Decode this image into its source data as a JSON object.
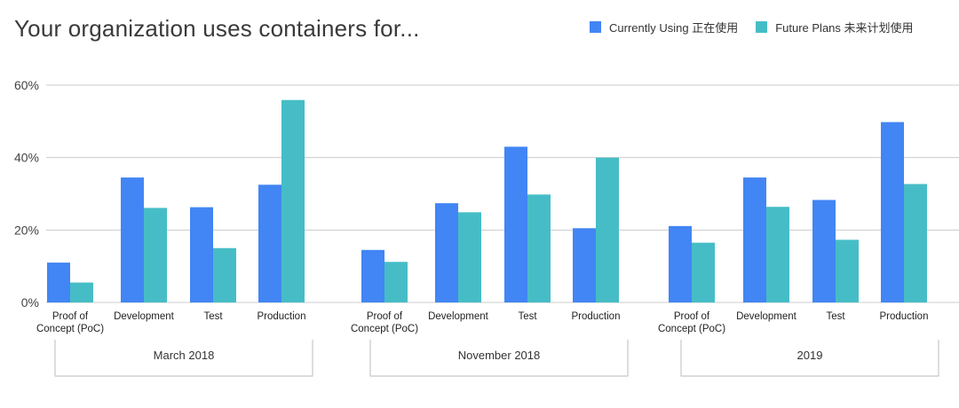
{
  "colors": {
    "currently_using": "#4285f4",
    "future_plans": "#46bdc6",
    "gridline": "#cccccc",
    "axis_text": "#444444"
  },
  "chart_data": {
    "type": "bar",
    "title": "Your organization uses containers for...",
    "ylim": [
      0,
      60
    ],
    "y_ticks": [
      0,
      20,
      40,
      60
    ],
    "y_tick_labels": [
      "0%",
      "20%",
      "40%",
      "60%"
    ],
    "grid": true,
    "legend_position": "top-right",
    "groups": [
      {
        "name": "March 2018",
        "categories": [
          "Proof of Concept (PoC)",
          "Development",
          "Test",
          "Production"
        ],
        "series": [
          {
            "name": "Currently Using 正在使用",
            "values": [
              11,
              34.5,
              26.3,
              32.5
            ]
          },
          {
            "name": "Future Plans 未来计划使用",
            "values": [
              5.5,
              26.1,
              15,
              55.9
            ]
          }
        ]
      },
      {
        "name": "November 2018",
        "categories": [
          "Proof of Concept (PoC)",
          "Development",
          "Test",
          "Production"
        ],
        "series": [
          {
            "name": "Currently Using 正在使用",
            "values": [
              14.5,
              27.4,
              43,
              20.5
            ]
          },
          {
            "name": "Future Plans 未来计划使用",
            "values": [
              11.2,
              24.9,
              29.8,
              40
            ]
          }
        ]
      },
      {
        "name": "2019",
        "categories": [
          "Proof of Concept (PoC)",
          "Development",
          "Test",
          "Production"
        ],
        "series": [
          {
            "name": "Currently Using 正在使用",
            "values": [
              21.1,
              34.5,
              28.3,
              49.8
            ]
          },
          {
            "name": "Future Plans 未来计划使用",
            "values": [
              16.5,
              26.4,
              17.3,
              32.7
            ]
          }
        ]
      }
    ],
    "category_label_lines": {
      "Proof of Concept (PoC)": [
        "Proof of",
        "Concept (PoC)"
      ],
      "Development": [
        "Development"
      ],
      "Test": [
        "Test"
      ],
      "Production": [
        "Production"
      ]
    }
  }
}
